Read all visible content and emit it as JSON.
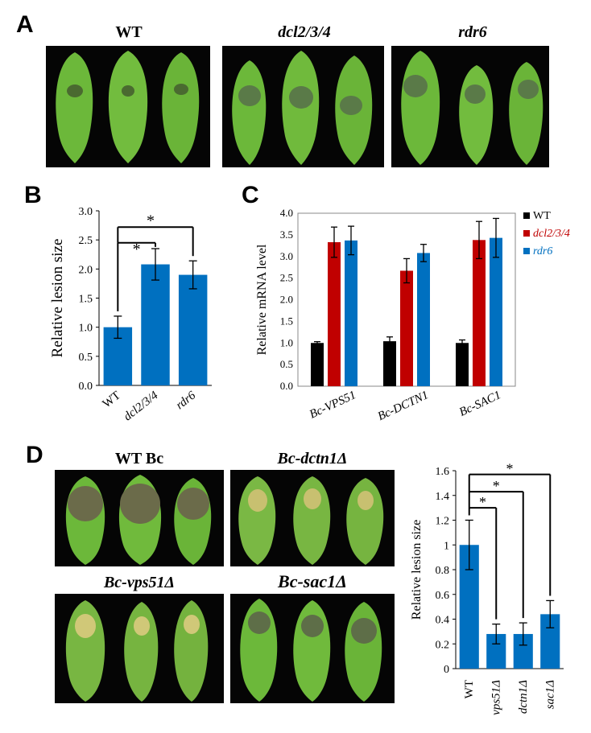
{
  "figure": {
    "panels": {
      "A": "A",
      "B": "B",
      "C": "C",
      "D": "D"
    },
    "panel_a": {
      "groups": [
        "WT",
        "dcl2/3/4",
        "rdr6"
      ]
    },
    "panel_d": {
      "groups": [
        "WT Bc",
        "Bc-dctn1Δ",
        "Bc-vps51Δ",
        "Bc-sac1Δ"
      ]
    }
  },
  "colors": {
    "black": "#000000",
    "red": "#c00000",
    "blue": "#0070c0",
    "leaf": "#6cb83a"
  },
  "chart_data": [
    {
      "id": "B",
      "type": "bar",
      "categories": [
        "WT",
        "dcl2/3/4",
        "rdr6"
      ],
      "values": [
        1.0,
        2.08,
        1.9
      ],
      "errors": [
        0.19,
        0.27,
        0.24
      ],
      "ylabel": "Relative lesion size",
      "ylim": [
        0,
        3.0
      ],
      "yticks": [
        "0.0",
        "0.5",
        "1.0",
        "1.5",
        "2.0",
        "2.5",
        "3.0"
      ],
      "significance": [
        {
          "from": "WT",
          "to": "dcl2/3/4",
          "label": "*"
        },
        {
          "from": "WT",
          "to": "rdr6",
          "label": "*"
        }
      ],
      "grid": false
    },
    {
      "id": "C",
      "type": "bar",
      "categories": [
        "Bc-VPS51",
        "Bc-DCTN1",
        "Bc-SAC1"
      ],
      "series": [
        {
          "name": "WT",
          "values": [
            1.0,
            1.04,
            1.0
          ],
          "errors": [
            0.03,
            0.1,
            0.07
          ]
        },
        {
          "name": "dcl2/3/4",
          "values": [
            3.33,
            2.67,
            3.38
          ],
          "errors": [
            0.35,
            0.28,
            0.43
          ]
        },
        {
          "name": "rdr6",
          "values": [
            3.37,
            3.08,
            3.43
          ],
          "errors": [
            0.33,
            0.2,
            0.45
          ]
        }
      ],
      "ylabel": "Relative mRNA level",
      "ylim": [
        0,
        4.0
      ],
      "yticks": [
        "0.0",
        "0.5",
        "1.0",
        "1.5",
        "2.0",
        "2.5",
        "3.0",
        "3.5",
        "4.0"
      ],
      "legend": "right",
      "grid": false
    },
    {
      "id": "D",
      "type": "bar",
      "categories": [
        "WT",
        "vps51Δ",
        "dctn1Δ",
        "sac1Δ"
      ],
      "values": [
        1.0,
        0.28,
        0.28,
        0.44
      ],
      "errors": [
        0.2,
        0.08,
        0.09,
        0.11
      ],
      "ylabel": "Relative lesion size",
      "ylim": [
        0,
        1.6
      ],
      "yticks": [
        "0",
        "0.2",
        "0.4",
        "0.6",
        "0.8",
        "1",
        "1.2",
        "1.4",
        "1.6"
      ],
      "significance": [
        {
          "from": "WT",
          "to": "vps51Δ",
          "label": "*"
        },
        {
          "from": "WT",
          "to": "dctn1Δ",
          "label": "*"
        },
        {
          "from": "WT",
          "to": "sac1Δ",
          "label": "*"
        }
      ],
      "grid": false
    }
  ]
}
